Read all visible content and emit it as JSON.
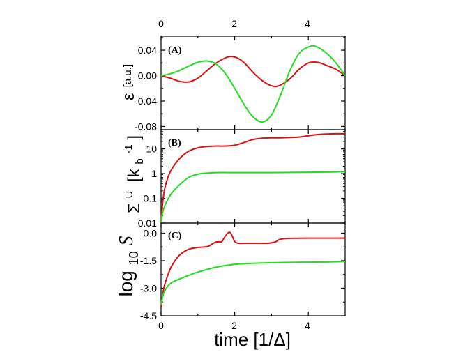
{
  "chart_data": {
    "type": "line",
    "xlabel": "time [1/Δ]",
    "xlim": [
      0,
      5
    ],
    "x_top_ticks": [
      "0",
      "2",
      "4"
    ],
    "x_bottom_ticks": [
      "0",
      "2",
      "4"
    ],
    "colors": {
      "red": "#dd1111",
      "green": "#22dd22"
    },
    "panels": [
      {
        "label": "(A)",
        "ylabel_symbol": "ε",
        "ylabel_unit": "[a.u.]",
        "yscale": "linear",
        "ylim": [
          -0.085,
          0.062
        ],
        "yticks": [
          0.04,
          0.0,
          -0.04,
          -0.08
        ],
        "ytick_labels": [
          "0.04",
          "0.00",
          "-0.04",
          "-0.08"
        ],
        "series": [
          {
            "name": "red",
            "x": [
              0,
              0.25,
              0.5,
              0.75,
              1.0,
              1.25,
              1.5,
              1.75,
              1.9,
              2.1,
              2.3,
              2.5,
              2.75,
              3.0,
              3.2,
              3.5,
              3.75,
              4.0,
              4.25,
              4.5,
              4.75,
              5.0
            ],
            "y": [
              0.0,
              -0.004,
              -0.009,
              -0.01,
              -0.004,
              0.008,
              0.02,
              0.028,
              0.03,
              0.027,
              0.018,
              0.005,
              -0.008,
              -0.016,
              -0.016,
              -0.005,
              0.01,
              0.02,
              0.021,
              0.016,
              0.01,
              0.0
            ]
          },
          {
            "name": "green",
            "x": [
              0,
              0.25,
              0.5,
              0.75,
              1.0,
              1.25,
              1.5,
              1.75,
              2.0,
              2.25,
              2.5,
              2.75,
              3.0,
              3.25,
              3.5,
              3.75,
              4.0,
              4.2,
              4.5,
              4.75,
              5.0
            ],
            "y": [
              0.0,
              0.003,
              0.008,
              0.015,
              0.021,
              0.023,
              0.018,
              0.003,
              -0.02,
              -0.045,
              -0.065,
              -0.073,
              -0.062,
              -0.03,
              0.008,
              0.035,
              0.045,
              0.046,
              0.035,
              0.02,
              0.0
            ]
          }
        ]
      },
      {
        "label": "(B)",
        "ylabel_symbol": "Σ",
        "ylabel_sup": "U",
        "ylabel_unit": "[k",
        "ylabel_unit_sub": "b",
        "ylabel_unit_sup": "-1",
        "ylabel_unit_end": "]",
        "yscale": "log",
        "ylim": [
          0.01,
          60
        ],
        "yticks": [
          10,
          1,
          0.1,
          0.01
        ],
        "ytick_labels": [
          "10",
          "1",
          "0.1",
          "0.01"
        ],
        "series": [
          {
            "name": "red",
            "x": [
              0.0,
              0.02,
              0.05,
              0.1,
              0.2,
              0.3,
              0.5,
              0.75,
              1.0,
              1.25,
              1.5,
              1.75,
              2.0,
              2.25,
              2.5,
              2.75,
              3.0,
              3.25,
              3.5,
              3.75,
              4.0,
              4.25,
              4.5,
              4.75,
              5.0
            ],
            "y": [
              0.01,
              0.03,
              0.08,
              0.25,
              0.8,
              1.6,
              4.0,
              8.0,
              11.0,
              12.5,
              13.0,
              13.0,
              14.0,
              18.0,
              24.0,
              27.0,
              28.0,
              28.0,
              29.0,
              30.0,
              34.0,
              38.0,
              40.0,
              41.0,
              41.0
            ]
          },
          {
            "name": "green",
            "x": [
              0.0,
              0.02,
              0.05,
              0.1,
              0.2,
              0.3,
              0.5,
              0.75,
              1.0,
              1.25,
              1.5,
              2.0,
              2.5,
              3.0,
              3.5,
              4.0,
              4.5,
              5.0
            ],
            "y": [
              0.01,
              0.018,
              0.03,
              0.05,
              0.1,
              0.17,
              0.35,
              0.7,
              0.95,
              1.05,
              1.1,
              1.1,
              1.1,
              1.1,
              1.12,
              1.13,
              1.15,
              1.2
            ]
          }
        ]
      },
      {
        "label": "(C)",
        "ylabel_base": "log",
        "ylabel_sub": "10",
        "ylabel_var": "S",
        "yscale": "linear",
        "ylim": [
          -4.5,
          0.55
        ],
        "yticks": [
          0.0,
          -1.5,
          -3.0,
          -4.5
        ],
        "ytick_labels": [
          "0.0",
          "-1.5",
          "-3.0",
          "-4.5"
        ],
        "series": [
          {
            "name": "red",
            "x": [
              0.0,
              0.02,
              0.05,
              0.1,
              0.2,
              0.3,
              0.5,
              0.75,
              1.0,
              1.2,
              1.3,
              1.4,
              1.5,
              1.6,
              1.65,
              1.75,
              1.85,
              1.92,
              2.0,
              2.1,
              2.3,
              2.6,
              2.9,
              3.1,
              3.2,
              3.3,
              3.5,
              4.0,
              4.5,
              5.0
            ],
            "y": [
              -4.0,
              -3.7,
              -3.3,
              -2.8,
              -2.2,
              -1.75,
              -1.2,
              -0.88,
              -0.78,
              -0.75,
              -0.7,
              -0.58,
              -0.48,
              -0.47,
              -0.46,
              -0.15,
              0.05,
              -0.1,
              -0.45,
              -0.55,
              -0.55,
              -0.55,
              -0.55,
              -0.48,
              -0.36,
              -0.31,
              -0.28,
              -0.27,
              -0.27,
              -0.27
            ]
          },
          {
            "name": "green",
            "x": [
              0.0,
              0.02,
              0.05,
              0.1,
              0.2,
              0.3,
              0.5,
              0.75,
              1.0,
              1.5,
              2.0,
              2.5,
              3.0,
              3.5,
              4.0,
              4.5,
              5.0
            ],
            "y": [
              -3.9,
              -3.65,
              -3.4,
              -3.15,
              -2.85,
              -2.68,
              -2.5,
              -2.3,
              -2.12,
              -1.85,
              -1.7,
              -1.64,
              -1.61,
              -1.59,
              -1.58,
              -1.57,
              -1.55
            ]
          }
        ]
      }
    ]
  }
}
